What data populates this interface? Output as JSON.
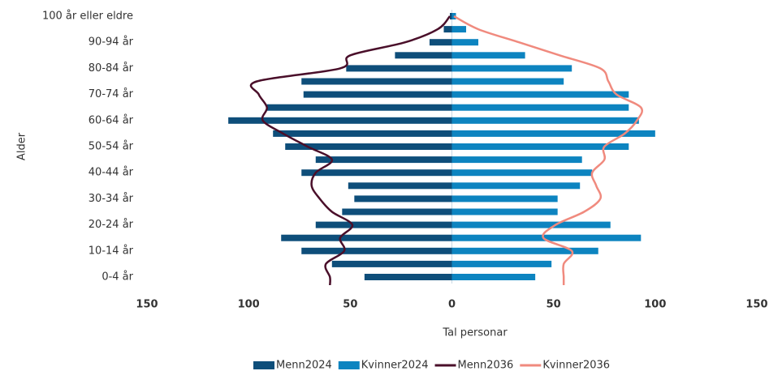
{
  "chart_data": {
    "type": "pyramid",
    "xlabel": "Tal personar",
    "ylabel": "Alder",
    "categories": [
      "0-4 år",
      null,
      "10-14 år",
      null,
      "20-24 år",
      null,
      "30-34 år",
      null,
      "40-44 år",
      null,
      "50-54 år",
      null,
      "60-64 år",
      null,
      "70-74 år",
      null,
      "80-84 år",
      null,
      "90-94 år",
      null,
      "100 år eller eldre"
    ],
    "xlim": [
      -150,
      150
    ],
    "xticks": [
      {
        "value": -150,
        "label": "150"
      },
      {
        "value": -100,
        "label": "100"
      },
      {
        "value": -50,
        "label": "50"
      },
      0,
      50,
      100,
      150
    ],
    "series": [
      {
        "name": "Menn2024",
        "mark": "bar",
        "color": "#0e4e7a",
        "values": [
          -43,
          -59,
          -74,
          -84,
          -67,
          -54,
          -48,
          -51,
          -74,
          -67,
          -82,
          -88,
          -110,
          -91,
          -73,
          -74,
          -52,
          -28,
          -11,
          -4,
          -1
        ]
      },
      {
        "name": "Kvinner2024",
        "mark": "bar",
        "color": "#0d84c0",
        "values": [
          41,
          49,
          72,
          93,
          78,
          52,
          52,
          63,
          69,
          64,
          87,
          100,
          92,
          87,
          87,
          55,
          59,
          36,
          13,
          7,
          2
        ]
      },
      {
        "name": "Menn2036",
        "mark": "line",
        "color": "#4a0f2a",
        "values": [
          -60,
          -62,
          -53,
          -55,
          -49,
          -59,
          -65,
          -69,
          -67,
          -59,
          -71,
          -83,
          -93,
          -91,
          -95,
          -96,
          -55,
          -50,
          -23,
          -7,
          -1
        ]
      },
      {
        "name": "Kvinner2036",
        "mark": "line",
        "color": "#f08a7e",
        "values": [
          55,
          55,
          59,
          45,
          51,
          65,
          73,
          71,
          69,
          75,
          75,
          85,
          91,
          93,
          81,
          77,
          73,
          53,
          33,
          13,
          1
        ]
      }
    ]
  }
}
